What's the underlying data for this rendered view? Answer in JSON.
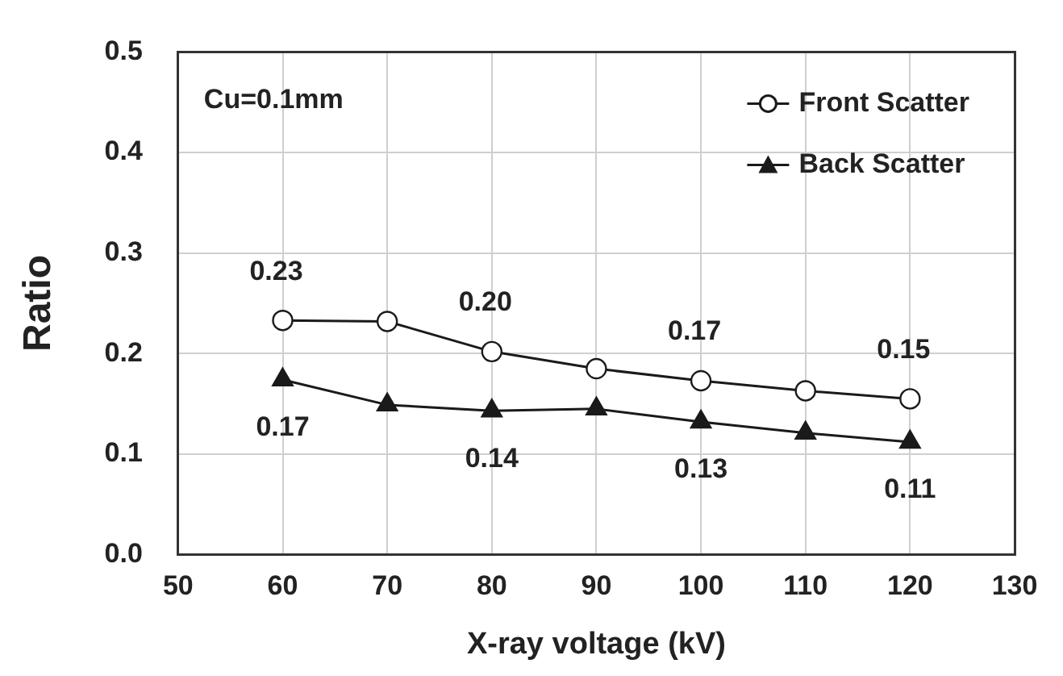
{
  "chart_data": {
    "type": "line",
    "xlabel": "X-ray voltage (kV)",
    "ylabel": "Ratio",
    "annotations": [
      "Cu=0.1mm"
    ],
    "x": [
      60,
      70,
      80,
      90,
      100,
      110,
      120
    ],
    "series": [
      {
        "name": "Front Scatter",
        "color": "#1a1a1a",
        "marker": "circle",
        "values": [
          0.233,
          0.232,
          0.202,
          0.185,
          0.173,
          0.163,
          0.155
        ],
        "value_labels": [
          "0.23",
          null,
          "0.20",
          null,
          "0.17",
          null,
          "0.15"
        ]
      },
      {
        "name": "Back Scatter",
        "color": "#1a1a1a",
        "marker": "triangle",
        "values": [
          0.174,
          0.149,
          0.143,
          0.145,
          0.132,
          0.121,
          0.112
        ],
        "value_labels": [
          "0.17",
          null,
          "0.14",
          null,
          "0.13",
          null,
          "0.11"
        ]
      }
    ],
    "xlim": [
      50,
      130
    ],
    "xticks": [
      50,
      60,
      70,
      80,
      90,
      100,
      110,
      120,
      130
    ],
    "ylim": [
      0,
      0.5
    ],
    "yticks": [
      {
        "value": 0,
        "label": "0.0"
      },
      0.1,
      0.2,
      0.3,
      0.4,
      0.5
    ],
    "grid": true,
    "legend": "top right",
    "line_style": "solid"
  }
}
